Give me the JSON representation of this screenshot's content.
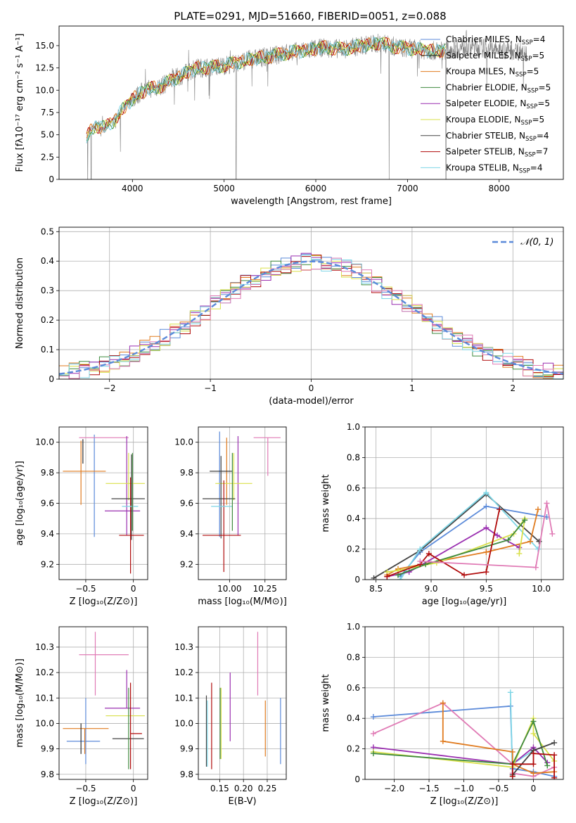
{
  "figure": {
    "title": "PLATE=0291, MJD=51660, FIBERID=0051, z=0.088"
  },
  "model_colors": {
    "Chabrier MILES": "#5b8ad9",
    "Salpeter MILES": "#2b2b2b",
    "Kroupa MILES": "#e07b1f",
    "Chabrier ELODIE": "#3f8a3f",
    "Salpeter ELODIE": "#9a2fb0",
    "Kroupa ELODIE": "#d9e04a",
    "Chabrier STELIB": "#444444",
    "Salpeter STELIB": "#b00a0a",
    "Kroupa STELIB": "#7fd6e6",
    "extra_pink": "#e07ab5",
    "observed": "#7f7f7f",
    "normal_curve": "#5b8ad9"
  },
  "chart_data": [
    {
      "id": "spectrum",
      "type": "line",
      "title": "PLATE=0291, MJD=51660, FIBERID=0051, z=0.088",
      "xlabel": "wavelength [Angstrom, rest frame]",
      "ylabel": "Flux [fλ10⁻¹⁷ erg cm⁻² s⁻¹ A⁻¹]",
      "xlim": [
        3200,
        8700
      ],
      "ylim": [
        0,
        17.2
      ],
      "xticks": [
        4000,
        5000,
        6000,
        7000,
        8000
      ],
      "yticks": [
        0.0,
        2.5,
        5.0,
        7.5,
        10.0,
        12.5,
        15.0
      ],
      "grid": false,
      "legend_position": "right",
      "legend": [
        "Chabrier MILES, N_SSP=4",
        "Salpeter MILES, N_SSP=5",
        "Kroupa MILES, N_SSP=5",
        "Chabrier ELODIE, N_SSP=5",
        "Salpeter ELODIE, N_SSP=5",
        "Kroupa ELODIE, N_SSP=5",
        "Chabrier STELIB, N_SSP=4",
        "Salpeter STELIB, N_SSP=7",
        "Kroupa STELIB, N_SSP=4"
      ],
      "continuum": {
        "x": [
          3500,
          3550,
          3600,
          3700,
          3800,
          3900,
          4000,
          4100,
          4200,
          4300,
          4500,
          4700,
          4900,
          5100,
          5300,
          5500,
          5700,
          5900,
          6100,
          6300,
          6500,
          6700,
          6900,
          7100,
          7300,
          7500,
          7700,
          7900,
          8100,
          8300
        ],
        "y": [
          4.7,
          5.5,
          6.0,
          5.8,
          6.6,
          7.9,
          9.0,
          9.8,
          10.2,
          10.4,
          11.5,
          12.5,
          12.6,
          13.0,
          13.5,
          13.8,
          14.2,
          14.5,
          14.8,
          14.6,
          15.0,
          15.3,
          14.8,
          14.6,
          14.4,
          14.6,
          14.9,
          14.6,
          14.5,
          14.3
        ]
      }
    },
    {
      "id": "residuals",
      "type": "line",
      "xlabel": "(data-model)/error",
      "ylabel": "Normed distribution",
      "xlim": [
        -2.5,
        2.5
      ],
      "ylim": [
        0,
        0.515
      ],
      "xticks": [
        -2,
        -1,
        0,
        1,
        2
      ],
      "yticks": [
        0.0,
        0.1,
        0.2,
        0.3,
        0.4,
        0.5
      ],
      "grid": true,
      "legend_position": "top-right",
      "legend": [
        "𝒩(0, 1)"
      ],
      "normal": {
        "mean": 0,
        "sigma": 1
      },
      "bin_width": 0.1
    },
    {
      "id": "age_vs_Z",
      "type": "scatter",
      "xlabel": "Z [log₁₀(Z/Z⊙)]",
      "ylabel": "age  [log₁₀(age/yr)]",
      "xlim": [
        -0.78,
        0.15
      ],
      "ylim": [
        9.1,
        10.1
      ],
      "xticks": [
        -0.5,
        0.0
      ],
      "yticks": [
        9.2,
        9.4,
        9.6,
        9.8,
        10.0
      ],
      "grid": true,
      "points": [
        {
          "model": "Chabrier MILES",
          "x": -0.41,
          "y": 9.79,
          "xerr": [
            0.0,
            0.0
          ],
          "yerr": [
            0.41,
            0.26
          ]
        },
        {
          "model": "Kroupa MILES",
          "x": -0.55,
          "y": 9.81,
          "xerr": [
            0.19,
            0.26
          ],
          "yerr": [
            0.22,
            0.2
          ]
        },
        {
          "model": "extra_pink",
          "x": -0.3,
          "y": 10.03,
          "xerr": [
            0.27,
            0.25
          ],
          "yerr": [
            0.0,
            0.0
          ]
        },
        {
          "model": "Salpeter MILES",
          "x": -0.53,
          "y": 9.96,
          "xerr": [
            0.0,
            0.0
          ],
          "yerr": [
            0.1,
            0.06
          ]
        },
        {
          "model": "Salpeter ELODIE",
          "x": -0.07,
          "y": 9.55,
          "xerr": [
            0.23,
            0.14
          ],
          "yerr": [
            0.16,
            0.49
          ]
        },
        {
          "model": "Kroupa ELODIE",
          "x": -0.05,
          "y": 9.73,
          "xerr": [
            0.24,
            0.17
          ],
          "yerr": [
            0.11,
            0.2
          ]
        },
        {
          "model": "Chabrier STELIB",
          "x": -0.02,
          "y": 9.63,
          "xerr": [
            0.21,
            0.14
          ],
          "yerr": [
            0.27,
            0.29
          ]
        },
        {
          "model": "Salpeter STELIB",
          "x": -0.03,
          "y": 9.39,
          "xerr": [
            0.12,
            0.14
          ],
          "yerr": [
            0.25,
            0.38
          ]
        },
        {
          "model": "Kroupa STELIB",
          "x": -0.03,
          "y": 9.58,
          "xerr": [
            0.09,
            0.08
          ],
          "yerr": [
            0.0,
            0.0
          ]
        },
        {
          "model": "Chabrier ELODIE",
          "x": -0.01,
          "y": 9.75,
          "xerr": [
            0.0,
            0.0
          ],
          "yerr": [
            0.33,
            0.18
          ]
        }
      ]
    },
    {
      "id": "age_vs_mass",
      "type": "scatter",
      "xlabel": "mass [log₁₀(M/M⊙)]",
      "ylabel": "",
      "xlim": [
        9.78,
        10.4
      ],
      "ylim": [
        9.1,
        10.1
      ],
      "xticks": [
        10.0,
        10.25
      ],
      "yticks": [
        9.2,
        9.4,
        9.6,
        9.8,
        10.0
      ],
      "grid": true,
      "points": [
        {
          "model": "Chabrier MILES",
          "x": 9.93,
          "y": 9.79,
          "xerr": [
            0.0,
            0.0
          ],
          "yerr": [
            0.41,
            0.28
          ]
        },
        {
          "model": "Kroupa MILES",
          "x": 9.98,
          "y": 9.81,
          "xerr": [
            0.0,
            0.0
          ],
          "yerr": [
            0.22,
            0.22
          ]
        },
        {
          "model": "extra_pink",
          "x": 10.27,
          "y": 10.03,
          "xerr": [
            0.1,
            0.09
          ],
          "yerr": [
            0.25,
            0.0
          ]
        },
        {
          "model": "Salpeter MILES",
          "x": 9.94,
          "y": 9.81,
          "xerr": [
            0.08,
            0.08
          ],
          "yerr": [
            0.0,
            0.0
          ]
        },
        {
          "model": "Salpeter ELODIE",
          "x": 10.06,
          "y": 9.55,
          "xerr": [
            0.0,
            0.0
          ],
          "yerr": [
            0.16,
            0.49
          ]
        },
        {
          "model": "Kroupa ELODIE",
          "x": 10.03,
          "y": 9.73,
          "xerr": [
            0.13,
            0.13
          ],
          "yerr": [
            0.11,
            0.2
          ]
        },
        {
          "model": "Chabrier STELIB",
          "x": 9.94,
          "y": 9.63,
          "xerr": [
            0.13,
            0.1
          ],
          "yerr": [
            0.26,
            0.28
          ]
        },
        {
          "model": "Salpeter STELIB",
          "x": 9.96,
          "y": 9.39,
          "xerr": [
            0.15,
            0.12
          ],
          "yerr": [
            0.24,
            0.36
          ]
        },
        {
          "model": "Kroupa STELIB",
          "x": 9.94,
          "y": 9.58,
          "xerr": [
            0.07,
            0.08
          ],
          "yerr": [
            0.0,
            0.0
          ]
        },
        {
          "model": "Chabrier ELODIE",
          "x": 10.02,
          "y": 9.75,
          "xerr": [
            0.0,
            0.0
          ],
          "yerr": [
            0.33,
            0.18
          ]
        }
      ]
    },
    {
      "id": "mass_weight_vs_age",
      "type": "line",
      "xlabel": "age  [log₁₀(age/yr)]",
      "ylabel": "mass weight",
      "xlim": [
        8.4,
        10.2
      ],
      "ylim": [
        0,
        1.0
      ],
      "xticks": [
        8.5,
        9.0,
        9.5,
        10.0
      ],
      "yticks": [
        0.0,
        0.2,
        0.4,
        0.6,
        0.8,
        1.0
      ],
      "grid": true,
      "series": [
        {
          "model": "Chabrier MILES",
          "x": [
            8.72,
            8.9,
            9.5,
            10.05
          ],
          "y": [
            0.02,
            0.18,
            0.48,
            0.41
          ]
        },
        {
          "model": "Chabrier STELIB",
          "x": [
            8.48,
            8.9,
            9.5,
            9.98
          ],
          "y": [
            0.01,
            0.19,
            0.56,
            0.25
          ]
        },
        {
          "model": "Kroupa STELIB",
          "x": [
            8.72,
            8.9,
            9.5,
            9.97
          ],
          "y": [
            0.0,
            0.2,
            0.57,
            0.2
          ]
        },
        {
          "model": "Kroupa MILES",
          "x": [
            8.6,
            8.7,
            9.5,
            9.9,
            9.97
          ],
          "y": [
            0.03,
            0.07,
            0.18,
            0.25,
            0.46
          ]
        },
        {
          "model": "Salpeter ELODIE",
          "x": [
            8.6,
            8.8,
            9.5,
            9.6,
            9.8
          ],
          "y": [
            0.02,
            0.05,
            0.34,
            0.29,
            0.21
          ]
        },
        {
          "model": "Kroupa ELODIE",
          "x": [
            8.6,
            8.7,
            9.05,
            9.75,
            9.85,
            9.8
          ],
          "y": [
            0.05,
            0.06,
            0.11,
            0.3,
            0.4,
            0.17
          ]
        },
        {
          "model": "Chabrier ELODIE",
          "x": [
            8.7,
            8.95,
            9.7,
            9.85
          ],
          "y": [
            0.03,
            0.1,
            0.26,
            0.39
          ]
        },
        {
          "model": "Salpeter STELIB",
          "x": [
            8.6,
            8.9,
            8.98,
            9.3,
            9.5,
            9.62
          ],
          "y": [
            0.02,
            0.1,
            0.17,
            0.03,
            0.05,
            0.46
          ]
        },
        {
          "model": "extra_pink",
          "x": [
            8.9,
            9.95,
            10.05,
            10.1
          ],
          "y": [
            0.12,
            0.08,
            0.5,
            0.3
          ]
        }
      ]
    },
    {
      "id": "mass_vs_Z",
      "type": "scatter",
      "xlabel": "Z [log₁₀(Z/Z⊙)]",
      "ylabel": "mass [log₁₀(M/M⊙)]",
      "xlim": [
        -0.78,
        0.15
      ],
      "ylim": [
        9.78,
        10.38
      ],
      "xticks": [
        -0.5,
        0.0
      ],
      "yticks": [
        9.8,
        9.9,
        10.0,
        10.1,
        10.2,
        10.3
      ],
      "grid": true,
      "points": [
        {
          "model": "Chabrier MILES",
          "x": -0.5,
          "y": 9.93,
          "xerr": [
            0.2,
            0.15
          ],
          "yerr": [
            0.09,
            0.17
          ]
        },
        {
          "model": "Kroupa MILES",
          "x": -0.51,
          "y": 9.98,
          "xerr": [
            0.23,
            0.25
          ],
          "yerr": [
            0.1,
            0.0
          ]
        },
        {
          "model": "extra_pink",
          "x": -0.4,
          "y": 10.27,
          "xerr": [
            0.17,
            0.35
          ],
          "yerr": [
            0.16,
            0.09
          ]
        },
        {
          "model": "Salpeter MILES",
          "x": -0.55,
          "y": 10.0,
          "xerr": [
            0.0,
            0.0
          ],
          "yerr": [
            0.12,
            0.0
          ]
        },
        {
          "model": "Salpeter ELODIE",
          "x": -0.07,
          "y": 10.06,
          "xerr": [
            0.23,
            0.14
          ],
          "yerr": [
            0.0,
            0.15
          ]
        },
        {
          "model": "Kroupa ELODIE",
          "x": -0.05,
          "y": 10.03,
          "xerr": [
            0.24,
            0.17
          ],
          "yerr": [
            0.0,
            0.0
          ]
        },
        {
          "model": "Chabrier STELIB",
          "x": -0.02,
          "y": 9.94,
          "xerr": [
            0.2,
            0.13
          ],
          "yerr": [
            0.0,
            0.0
          ]
        },
        {
          "model": "Salpeter STELIB",
          "x": -0.03,
          "y": 9.96,
          "xerr": [
            0.0,
            0.12
          ],
          "yerr": [
            0.14,
            0.2
          ]
        },
        {
          "model": "Chabrier ELODIE",
          "x": -0.05,
          "y": 10.0,
          "xerr": [
            0.0,
            0.0
          ],
          "yerr": [
            0.18,
            0.14
          ]
        }
      ]
    },
    {
      "id": "mass_vs_EBV",
      "type": "scatter",
      "xlabel": "E(B-V)",
      "ylabel": "",
      "xlim": [
        0.105,
        0.29
      ],
      "ylim": [
        9.78,
        10.38
      ],
      "xticks": [
        0.15,
        0.2,
        0.25
      ],
      "yticks": [
        9.8,
        9.9,
        10.0,
        10.1,
        10.2,
        10.3
      ],
      "grid": true,
      "points": [
        {
          "model": "Chabrier MILES",
          "x": 0.278,
          "y": 9.97,
          "xerr": [
            0.0,
            0.0
          ],
          "yerr": [
            0.13,
            0.13
          ]
        },
        {
          "model": "Kroupa MILES",
          "x": 0.246,
          "y": 9.97,
          "xerr": [
            0.0,
            0.0
          ],
          "yerr": [
            0.1,
            0.12
          ]
        },
        {
          "model": "extra_pink",
          "x": 0.23,
          "y": 10.24,
          "xerr": [
            0.0,
            0.0
          ],
          "yerr": [
            0.13,
            0.12
          ]
        },
        {
          "model": "Chabrier STELIB",
          "x": 0.122,
          "y": 9.97,
          "xerr": [
            0.0,
            0.0
          ],
          "yerr": [
            0.14,
            0.14
          ]
        },
        {
          "model": "Kroupa STELIB",
          "x": 0.124,
          "y": 9.96,
          "xerr": [
            0.0,
            0.0
          ],
          "yerr": [
            0.13,
            0.13
          ]
        },
        {
          "model": "Salpeter STELIB",
          "x": 0.133,
          "y": 9.98,
          "xerr": [
            0.0,
            0.0
          ],
          "yerr": [
            0.16,
            0.18
          ]
        },
        {
          "model": "Kroupa ELODIE",
          "x": 0.153,
          "y": 10.0,
          "xerr": [
            0.0,
            0.0
          ],
          "yerr": [
            0.14,
            0.14
          ]
        },
        {
          "model": "Chabrier ELODIE",
          "x": 0.151,
          "y": 9.99,
          "xerr": [
            0.0,
            0.0
          ],
          "yerr": [
            0.13,
            0.15
          ]
        },
        {
          "model": "Salpeter ELODIE",
          "x": 0.172,
          "y": 10.06,
          "xerr": [
            0.0,
            0.0
          ],
          "yerr": [
            0.13,
            0.14
          ]
        }
      ]
    },
    {
      "id": "mass_weight_vs_Z",
      "type": "line",
      "xlabel": "Z [log₁₀(Z/Z⊙)]",
      "ylabel": "mass weight",
      "xlim": [
        -2.42,
        0.43
      ],
      "ylim": [
        0,
        1.0
      ],
      "xticks": [
        -2.0,
        -1.5,
        -1.0,
        -0.5,
        0.0
      ],
      "yticks": [
        0.0,
        0.2,
        0.4,
        0.6,
        0.8,
        1.0
      ],
      "grid": true,
      "series": [
        {
          "model": "Chabrier MILES",
          "x": [
            -2.3,
            -0.33,
            -0.3,
            0.0,
            0.3
          ],
          "y": [
            0.41,
            0.48,
            0.07,
            0.05,
            0.02
          ]
        },
        {
          "model": "Kroupa STELIB",
          "x": [
            -0.33,
            -0.3,
            -0.3,
            0.0
          ],
          "y": [
            0.57,
            0.0,
            0.1,
            0.19
          ]
        },
        {
          "model": "extra_pink",
          "x": [
            -2.3,
            -1.3,
            -0.3,
            -0.3,
            0.0,
            0.3
          ],
          "y": [
            0.3,
            0.5,
            0.1,
            0.04,
            0.02,
            0.08
          ]
        },
        {
          "model": "Kroupa MILES",
          "x": [
            -1.3,
            -1.3,
            -0.3,
            -0.3,
            0.0,
            0.3
          ],
          "y": [
            0.5,
            0.25,
            0.18,
            0.1,
            0.04,
            0.05
          ]
        },
        {
          "model": "Salpeter ELODIE",
          "x": [
            -2.3,
            -0.3,
            0.0,
            0.2
          ],
          "y": [
            0.21,
            0.1,
            0.21,
            0.11
          ]
        },
        {
          "model": "Kroupa ELODIE",
          "x": [
            -2.3,
            -0.3,
            0.0,
            0.0,
            0.3
          ],
          "y": [
            0.18,
            0.08,
            0.4,
            0.3,
            0.12
          ]
        },
        {
          "model": "Chabrier ELODIE",
          "x": [
            -2.3,
            -0.3,
            0.0,
            0.2
          ],
          "y": [
            0.17,
            0.1,
            0.38,
            0.09
          ]
        },
        {
          "model": "Chabrier STELIB",
          "x": [
            -0.3,
            0.0,
            0.3
          ],
          "y": [
            0.03,
            0.19,
            0.24
          ]
        },
        {
          "model": "Salpeter STELIB",
          "x": [
            -0.3,
            -0.3,
            0.0,
            0.0,
            0.3,
            0.3
          ],
          "y": [
            0.02,
            0.1,
            0.1,
            0.17,
            0.16,
            0.01
          ]
        }
      ]
    }
  ]
}
